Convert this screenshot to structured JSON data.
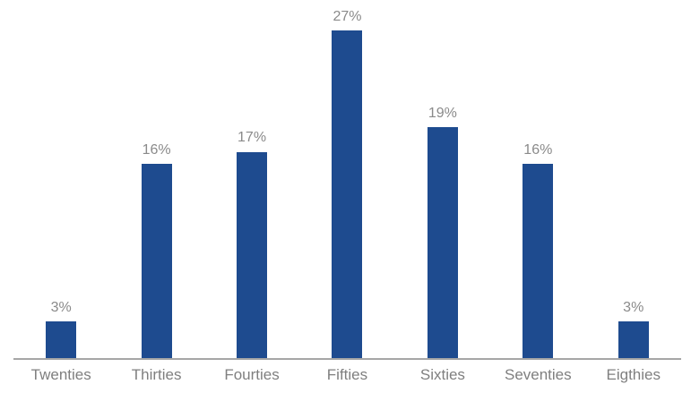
{
  "chart_data": {
    "type": "bar",
    "title": "",
    "xlabel": "",
    "ylabel": "",
    "categories": [
      "Twenties",
      "Thirties",
      "Fourties",
      "Fifties",
      "Sixties",
      "Seventies",
      "Eigthies"
    ],
    "values": [
      3,
      16,
      17,
      27,
      19,
      16,
      3
    ],
    "data_labels": [
      "3%",
      "16%",
      "17%",
      "27%",
      "19%",
      "16%",
      "3%"
    ],
    "ylim": [
      0,
      29.5
    ],
    "grid": false,
    "legend": false,
    "data_labels_shown": true,
    "colors": {
      "bar": "#1E4B8F",
      "axis_line": "#A6A6A6",
      "value_label": "#8A8A8A",
      "category_label": "#7F7F7F",
      "background": "#FFFFFF"
    }
  }
}
